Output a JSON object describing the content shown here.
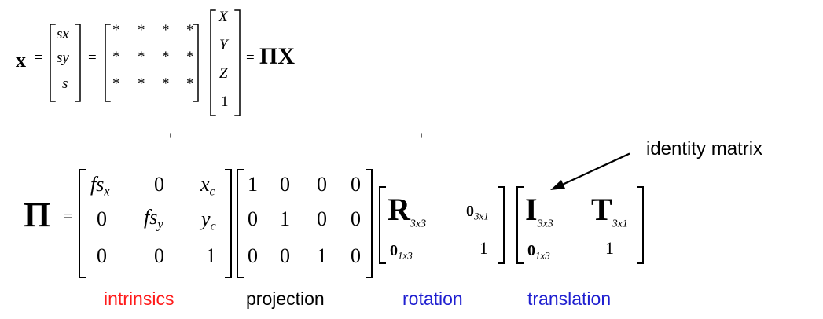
{
  "eq1": {
    "lhs": "x",
    "equals": "=",
    "vec_x": [
      "sx",
      "sy",
      "s"
    ],
    "star_matrix": [
      [
        "*",
        "*",
        "*",
        "*"
      ],
      [
        "*",
        "*",
        "*",
        "*"
      ],
      [
        "*",
        "*",
        "*",
        "*"
      ]
    ],
    "vec_X": [
      "X",
      "Y",
      "Z",
      "1"
    ],
    "rhs": "ΠX"
  },
  "eq2": {
    "lhs": "Π",
    "equals": "=",
    "intrinsics": {
      "r0c0": "fs",
      "r0c0_sub": "x",
      "r0c1": "0",
      "r0c2": "x",
      "r0c2_sub": "c",
      "r1c0": "0",
      "r1c1": "fs",
      "r1c1_sub": "y",
      "r1c2": "y",
      "r1c2_sub": "c",
      "r2c0": "0",
      "r2c1": "0",
      "r2c2": "1"
    },
    "projection": [
      [
        "1",
        "0",
        "0",
        "0"
      ],
      [
        "0",
        "1",
        "0",
        "0"
      ],
      [
        "0",
        "0",
        "1",
        "0"
      ]
    ],
    "rotation": {
      "R": "R",
      "R_sub": "3x3",
      "zero_col": "0",
      "zero_col_sub": "3x1",
      "zero_row": "0",
      "zero_row_sub": "1x3",
      "one": "1"
    },
    "translation": {
      "I": "I",
      "I_sub": "3x3",
      "T": "T",
      "T_sub": "3x1",
      "zero_row": "0",
      "zero_row_sub": "1x3",
      "one": "1"
    }
  },
  "annotation": {
    "label": "identity matrix"
  },
  "labels": {
    "intrinsics": "intrinsics",
    "projection": "projection",
    "rotation": "rotation",
    "translation": "translation"
  },
  "colors": {
    "intrinsics": "#ff1a1a",
    "projection": "#000000",
    "rotation": "#1f1fd0",
    "translation": "#1f1fd0"
  }
}
